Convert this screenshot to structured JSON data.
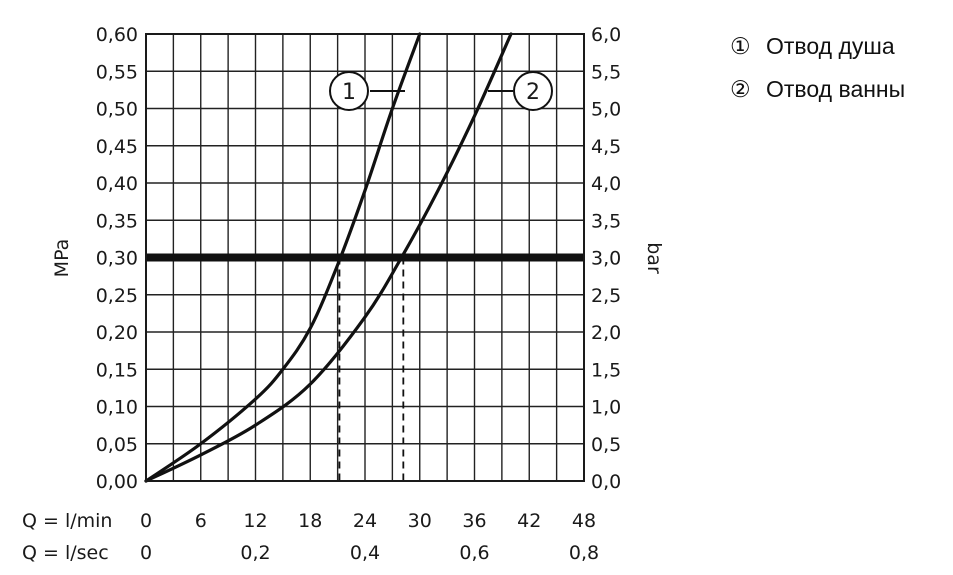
{
  "chart_data": {
    "type": "line",
    "y_left": {
      "label": "MPa",
      "range": [
        0,
        0.6
      ],
      "ticks": [
        "0,00",
        "0,05",
        "0,10",
        "0,15",
        "0,20",
        "0,25",
        "0,30",
        "0,35",
        "0,40",
        "0,45",
        "0,50",
        "0,55",
        "0,60"
      ]
    },
    "y_right": {
      "label": "bar",
      "range": [
        0,
        6
      ],
      "ticks": [
        "0,0",
        "0,5",
        "1,0",
        "1,5",
        "2,0",
        "2,5",
        "3,0",
        "3,5",
        "4,0",
        "4,5",
        "5,0",
        "5,5",
        "6,0"
      ]
    },
    "x_lmin": {
      "label": "Q = l/min",
      "range": [
        0,
        48
      ],
      "ticks": [
        "0",
        "6",
        "12",
        "18",
        "24",
        "30",
        "36",
        "42",
        "48"
      ]
    },
    "x_lsec": {
      "label": "Q = l/sec",
      "ticks": [
        {
          "v": 0,
          "t": "0"
        },
        {
          "v": 0.2,
          "t": "0,2"
        },
        {
          "v": 0.4,
          "t": "0,4"
        },
        {
          "v": 0.6,
          "t": "0,6"
        },
        {
          "v": 0.8,
          "t": "0,8"
        }
      ]
    },
    "grid": true,
    "reference_line": {
      "y": 0.3
    },
    "series": [
      {
        "badge": "1",
        "name": "Отвод душа",
        "x": [
          0,
          6,
          12,
          15,
          18,
          21,
          24,
          27,
          30
        ],
        "y": [
          0,
          0.05,
          0.11,
          0.15,
          0.205,
          0.29,
          0.39,
          0.5,
          0.6
        ],
        "intersection_x": 21.2
      },
      {
        "badge": "2",
        "name": "Отвод ванны",
        "x": [
          0,
          6,
          12,
          18,
          24,
          28,
          32,
          36,
          40
        ],
        "y": [
          0,
          0.035,
          0.075,
          0.13,
          0.22,
          0.3,
          0.39,
          0.49,
          0.6
        ],
        "intersection_x": 28.2
      }
    ]
  },
  "legend": {
    "items": [
      {
        "marker": "①",
        "label": "Отвод душа"
      },
      {
        "marker": "②",
        "label": "Отвод ванны"
      }
    ]
  }
}
